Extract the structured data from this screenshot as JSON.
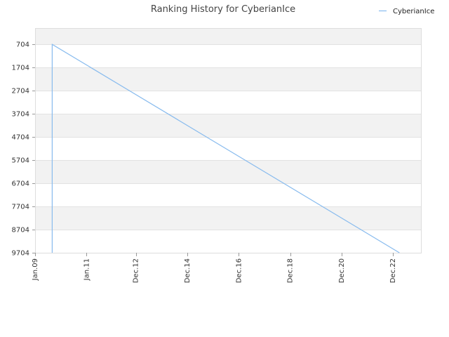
{
  "chart_data": {
    "type": "line",
    "title": "Ranking History for CyberianIce",
    "xlabel": "",
    "ylabel": "",
    "x_ticks": [
      "Jan.09",
      "Jan.11",
      "Dec.12",
      "Dec.14",
      "Dec.16",
      "Dec.18",
      "Dec.20",
      "Dec.22"
    ],
    "x_tick_dates": [
      "2009-01-01",
      "2011-01-01",
      "2012-12-01",
      "2014-12-01",
      "2016-12-01",
      "2018-12-01",
      "2020-12-01",
      "2022-12-01"
    ],
    "y_ticks": [
      704,
      1704,
      2704,
      3704,
      4704,
      5704,
      6704,
      7704,
      8704,
      9704
    ],
    "xlim": [
      "2009-01-01",
      "2024-01-01"
    ],
    "ylim": [
      9704,
      0
    ],
    "y_inverted": true,
    "grid": "horizontal bands",
    "legend_position": "top-right",
    "series": [
      {
        "name": "CyberianIce",
        "color": "#88bbee",
        "points": [
          {
            "x": "2009-09-01",
            "y": 9704
          },
          {
            "x": "2009-09-01",
            "y": 704
          },
          {
            "x": "2023-03-01",
            "y": 9704
          }
        ]
      }
    ]
  }
}
